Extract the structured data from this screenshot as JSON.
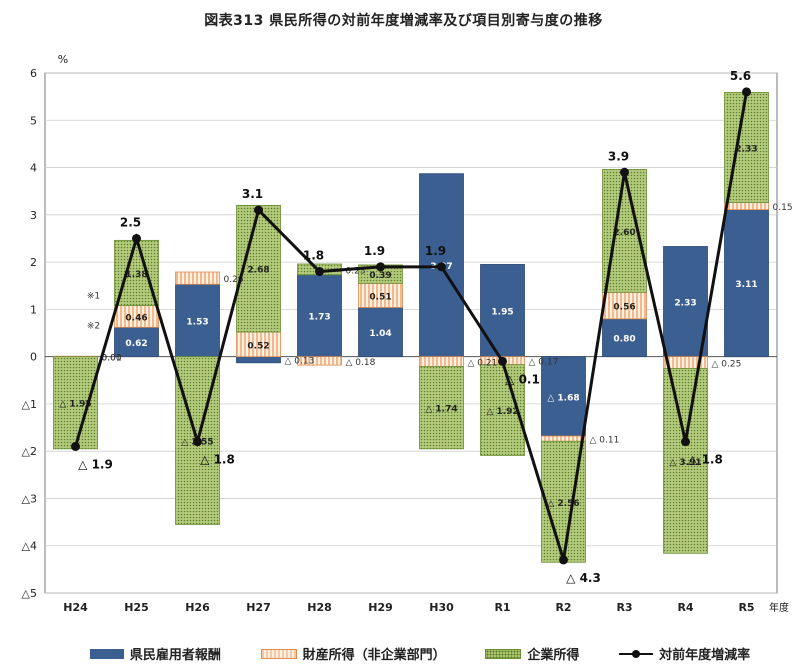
{
  "title": "図表313 県民所得の対前年度増減率及び項目別寄与度の推移",
  "chart_data": {
    "type": "bar",
    "unit_label": "%",
    "x_axis_unit": "年度",
    "categories": [
      "H24",
      "H25",
      "H26",
      "H27",
      "H28",
      "H29",
      "H30",
      "R1",
      "R2",
      "R3",
      "R4",
      "R5"
    ],
    "ylim": [
      -5,
      6
    ],
    "y_ticks": [
      {
        "v": 6,
        "label": "6"
      },
      {
        "v": 5,
        "label": "5"
      },
      {
        "v": 4,
        "label": "4"
      },
      {
        "v": 3,
        "label": "3"
      },
      {
        "v": 2,
        "label": "2"
      },
      {
        "v": 1,
        "label": "1"
      },
      {
        "v": 0,
        "label": "0"
      },
      {
        "v": -1,
        "label": "△1"
      },
      {
        "v": -2,
        "label": "△2"
      },
      {
        "v": -3,
        "label": "△3"
      },
      {
        "v": -4,
        "label": "△4"
      },
      {
        "v": -5,
        "label": "△5"
      }
    ],
    "grid": true,
    "legend_position": "bottom",
    "series": [
      {
        "name": "県民雇用者報酬",
        "kind": "bar",
        "color": "#3c5f92",
        "values": [
          0.0,
          0.62,
          1.53,
          -0.13,
          1.73,
          1.04,
          3.87,
          1.95,
          -1.68,
          0.8,
          2.33,
          3.11
        ],
        "labels": [
          "0.00",
          "0.62",
          "1.53",
          "△ 0.13",
          "1.73",
          "1.04",
          "3.87",
          "1.95",
          "△ 1.68",
          "0.80",
          "2.33",
          "3.11"
        ]
      },
      {
        "name": "財産所得（非企業部門）",
        "kind": "bar",
        "color": "#f6c9a4",
        "values": [
          0.01,
          0.46,
          0.26,
          0.52,
          -0.18,
          0.51,
          -0.21,
          -0.17,
          -0.11,
          0.56,
          -0.25,
          0.15
        ],
        "labels": [
          "0.01",
          "0.46",
          "0.26",
          "0.52",
          "△ 0.18",
          "0.51",
          "△ 0.21",
          "△ 0.17",
          "△ 0.11",
          "0.56",
          "△ 0.25",
          "0.15"
        ]
      },
      {
        "name": "企業所得",
        "kind": "bar",
        "color": "#a9c46c",
        "values": [
          -1.95,
          1.38,
          -3.55,
          2.68,
          0.23,
          0.39,
          -1.74,
          -1.92,
          -2.56,
          2.6,
          -3.91,
          2.33
        ],
        "labels": [
          "△ 1.95",
          "1.38",
          "△ 3.55",
          "2.68",
          "0.23",
          "0.39",
          "△ 1.74",
          "△ 1.92",
          "△ 2.56",
          "2.60",
          "△ 3.91",
          "2.33"
        ]
      },
      {
        "name": "対前年度増減率",
        "kind": "line",
        "color": "#111111",
        "values": [
          -1.9,
          2.5,
          -1.8,
          3.1,
          1.8,
          1.9,
          1.9,
          -0.1,
          -4.3,
          3.9,
          -1.8,
          5.6
        ],
        "labels": [
          "△ 1.9",
          "2.5",
          "△ 1.8",
          "3.1",
          "1.8",
          "1.9",
          "1.9",
          "△ 0.1",
          "△ 4.3",
          "3.9",
          "△ 1.8",
          "5.6"
        ]
      }
    ],
    "annotations": [
      "※1",
      "※2"
    ]
  }
}
